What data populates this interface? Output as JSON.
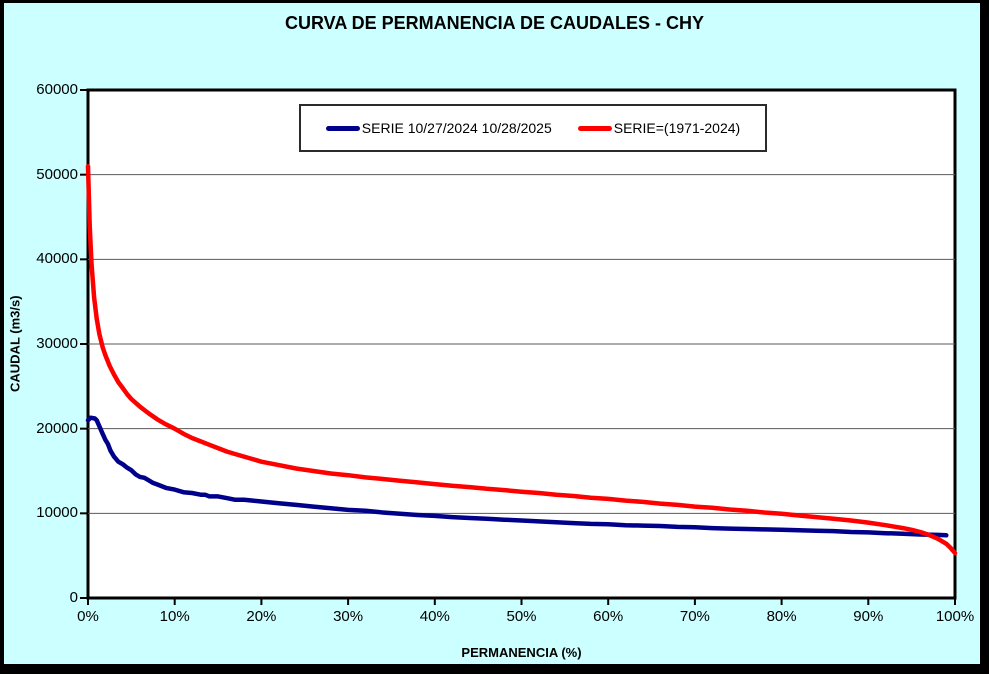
{
  "title": "CURVA DE PERMANENCIA DE CAUDALES - CHY",
  "colors": {
    "background": "#CCFFFF",
    "plot_background": "#FFFFFF",
    "frame_border": "#000000",
    "gridline": "#595959",
    "axis": "#000000",
    "series_blue": "#00008B",
    "series_red": "#FF0000"
  },
  "chart_data": {
    "type": "line",
    "title": "CURVA DE PERMANENCIA DE CAUDALES - CHY",
    "xlabel": "PERMANENCIA (%)",
    "ylabel": "CAUDAL (m3/s)",
    "xlim": [
      0,
      100
    ],
    "ylim": [
      0,
      60000
    ],
    "grid": "horizontal-only",
    "legend_position": "top-center-inside",
    "x_ticks": [
      {
        "value": 0,
        "label": "0%"
      },
      {
        "value": 10,
        "label": "10%"
      },
      {
        "value": 20,
        "label": "20%"
      },
      {
        "value": 30,
        "label": "30%"
      },
      {
        "value": 40,
        "label": "40%"
      },
      {
        "value": 50,
        "label": "50%"
      },
      {
        "value": 60,
        "label": "60%"
      },
      {
        "value": 70,
        "label": "70%"
      },
      {
        "value": 80,
        "label": "80%"
      },
      {
        "value": 90,
        "label": "90%"
      },
      {
        "value": 100,
        "label": "100%"
      }
    ],
    "y_ticks": [
      {
        "value": 0,
        "label": "0"
      },
      {
        "value": 10000,
        "label": "10000"
      },
      {
        "value": 20000,
        "label": "20000"
      },
      {
        "value": 30000,
        "label": "30000"
      },
      {
        "value": 40000,
        "label": "40000"
      },
      {
        "value": 50000,
        "label": "50000"
      },
      {
        "value": 60000,
        "label": "60000"
      }
    ],
    "series": [
      {
        "name": "SERIE 10/27/2024 10/28/2025",
        "color": "#00008B",
        "points": [
          [
            0,
            21000
          ],
          [
            0.3,
            21300
          ],
          [
            0.8,
            21200
          ],
          [
            1.0,
            21000
          ],
          [
            1.3,
            20300
          ],
          [
            1.6,
            19600
          ],
          [
            2.0,
            18700
          ],
          [
            2.3,
            18200
          ],
          [
            2.6,
            17400
          ],
          [
            3.0,
            16700
          ],
          [
            3.5,
            16100
          ],
          [
            4.0,
            15800
          ],
          [
            4.5,
            15400
          ],
          [
            5.0,
            15100
          ],
          [
            5.5,
            14600
          ],
          [
            6.0,
            14300
          ],
          [
            6.5,
            14200
          ],
          [
            7.0,
            13900
          ],
          [
            7.5,
            13600
          ],
          [
            8.0,
            13400
          ],
          [
            9.0,
            13000
          ],
          [
            10,
            12800
          ],
          [
            11,
            12500
          ],
          [
            12,
            12400
          ],
          [
            13,
            12200
          ],
          [
            13.5,
            12200
          ],
          [
            14,
            12000
          ],
          [
            15,
            12000
          ],
          [
            16,
            11800
          ],
          [
            17,
            11600
          ],
          [
            18,
            11600
          ],
          [
            19,
            11500
          ],
          [
            20,
            11400
          ],
          [
            22,
            11200
          ],
          [
            24,
            11000
          ],
          [
            26,
            10800
          ],
          [
            28,
            10600
          ],
          [
            30,
            10400
          ],
          [
            32,
            10300
          ],
          [
            34,
            10100
          ],
          [
            36,
            9950
          ],
          [
            38,
            9800
          ],
          [
            40,
            9700
          ],
          [
            42,
            9550
          ],
          [
            44,
            9450
          ],
          [
            46,
            9350
          ],
          [
            48,
            9250
          ],
          [
            50,
            9150
          ],
          [
            52,
            9050
          ],
          [
            54,
            8950
          ],
          [
            56,
            8850
          ],
          [
            58,
            8750
          ],
          [
            60,
            8700
          ],
          [
            62,
            8600
          ],
          [
            64,
            8550
          ],
          [
            66,
            8500
          ],
          [
            68,
            8400
          ],
          [
            70,
            8350
          ],
          [
            72,
            8250
          ],
          [
            74,
            8200
          ],
          [
            76,
            8150
          ],
          [
            78,
            8100
          ],
          [
            80,
            8050
          ],
          [
            82,
            8000
          ],
          [
            84,
            7950
          ],
          [
            86,
            7900
          ],
          [
            88,
            7800
          ],
          [
            90,
            7750
          ],
          [
            92,
            7650
          ],
          [
            94,
            7600
          ],
          [
            96,
            7500
          ],
          [
            98,
            7450
          ],
          [
            99,
            7400
          ]
        ]
      },
      {
        "name": "SERIE=(1971-2024)",
        "color": "#FF0000",
        "points": [
          [
            0,
            51000
          ],
          [
            0.2,
            44000
          ],
          [
            0.4,
            39500
          ],
          [
            0.7,
            35500
          ],
          [
            1.0,
            33000
          ],
          [
            1.3,
            31200
          ],
          [
            1.7,
            29600
          ],
          [
            2.0,
            28700
          ],
          [
            2.5,
            27400
          ],
          [
            3.0,
            26400
          ],
          [
            3.5,
            25500
          ],
          [
            4.0,
            24800
          ],
          [
            4.5,
            24100
          ],
          [
            5.0,
            23500
          ],
          [
            6.0,
            22600
          ],
          [
            7.0,
            21800
          ],
          [
            8.0,
            21100
          ],
          [
            9.0,
            20500
          ],
          [
            10,
            20000
          ],
          [
            11,
            19400
          ],
          [
            12,
            18900
          ],
          [
            13,
            18500
          ],
          [
            14,
            18100
          ],
          [
            15,
            17700
          ],
          [
            16,
            17300
          ],
          [
            17,
            17000
          ],
          [
            18,
            16700
          ],
          [
            19,
            16400
          ],
          [
            20,
            16100
          ],
          [
            22,
            15700
          ],
          [
            24,
            15300
          ],
          [
            26,
            15000
          ],
          [
            28,
            14700
          ],
          [
            30,
            14500
          ],
          [
            32,
            14250
          ],
          [
            34,
            14050
          ],
          [
            36,
            13850
          ],
          [
            38,
            13650
          ],
          [
            40,
            13450
          ],
          [
            42,
            13250
          ],
          [
            44,
            13100
          ],
          [
            46,
            12900
          ],
          [
            48,
            12750
          ],
          [
            50,
            12550
          ],
          [
            52,
            12400
          ],
          [
            54,
            12200
          ],
          [
            56,
            12050
          ],
          [
            58,
            11850
          ],
          [
            60,
            11700
          ],
          [
            62,
            11500
          ],
          [
            64,
            11350
          ],
          [
            66,
            11150
          ],
          [
            68,
            11000
          ],
          [
            70,
            10800
          ],
          [
            72,
            10650
          ],
          [
            74,
            10450
          ],
          [
            76,
            10300
          ],
          [
            78,
            10100
          ],
          [
            80,
            9950
          ],
          [
            82,
            9750
          ],
          [
            84,
            9550
          ],
          [
            86,
            9350
          ],
          [
            88,
            9150
          ],
          [
            90,
            8900
          ],
          [
            92,
            8600
          ],
          [
            94,
            8250
          ],
          [
            95,
            8050
          ],
          [
            96,
            7800
          ],
          [
            97,
            7450
          ],
          [
            98,
            7000
          ],
          [
            99,
            6400
          ],
          [
            99.5,
            5900
          ],
          [
            100,
            5300
          ]
        ]
      }
    ]
  }
}
